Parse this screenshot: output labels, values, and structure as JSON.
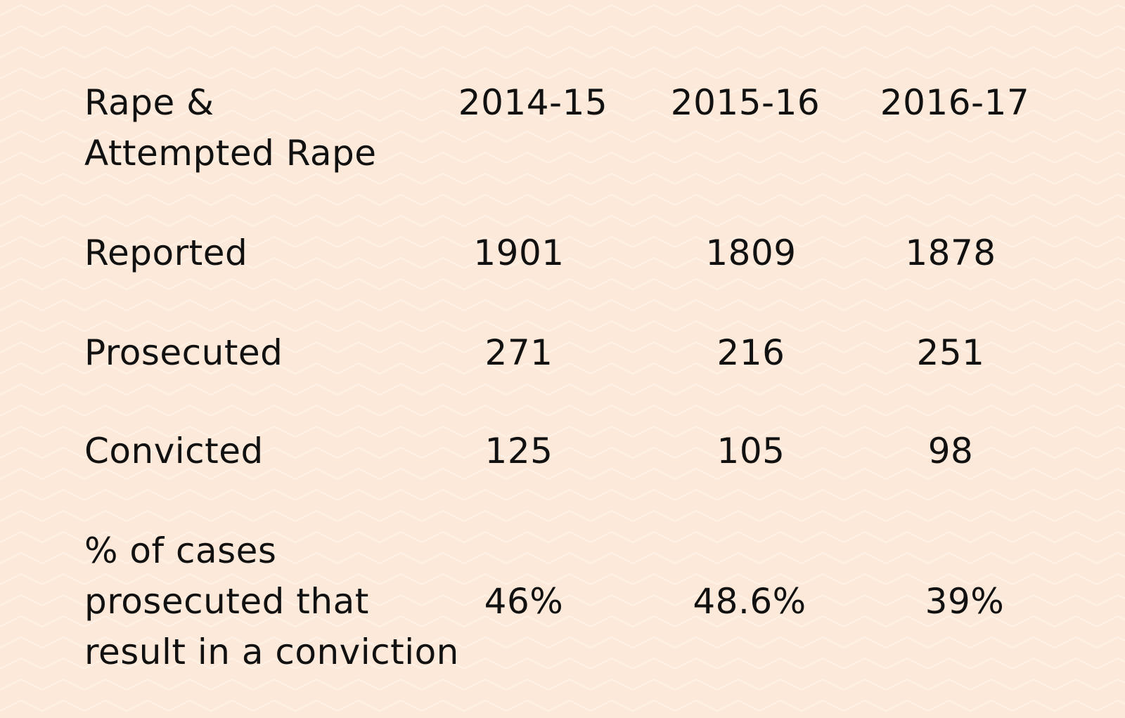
{
  "header": {
    "label_line1": "Rape &",
    "label_line2": "Attempted Rape",
    "years": [
      "2014-15",
      "2015-16",
      "2016-17"
    ]
  },
  "rows": [
    {
      "label": "Reported",
      "values": [
        "1901",
        "1809",
        "1878"
      ]
    },
    {
      "label": "Prosecuted",
      "values": [
        "271",
        "216",
        "251"
      ]
    },
    {
      "label": "Convicted",
      "values": [
        "125",
        "105",
        "98"
      ]
    }
  ],
  "percent_row": {
    "label_line1": "% of cases",
    "label_line2": "prosecuted that",
    "label_line3": "result in a conviction",
    "values": [
      "46%",
      "48.6%",
      "39%"
    ]
  },
  "colors": {
    "background": "#fde9d9",
    "text": "#111111"
  }
}
